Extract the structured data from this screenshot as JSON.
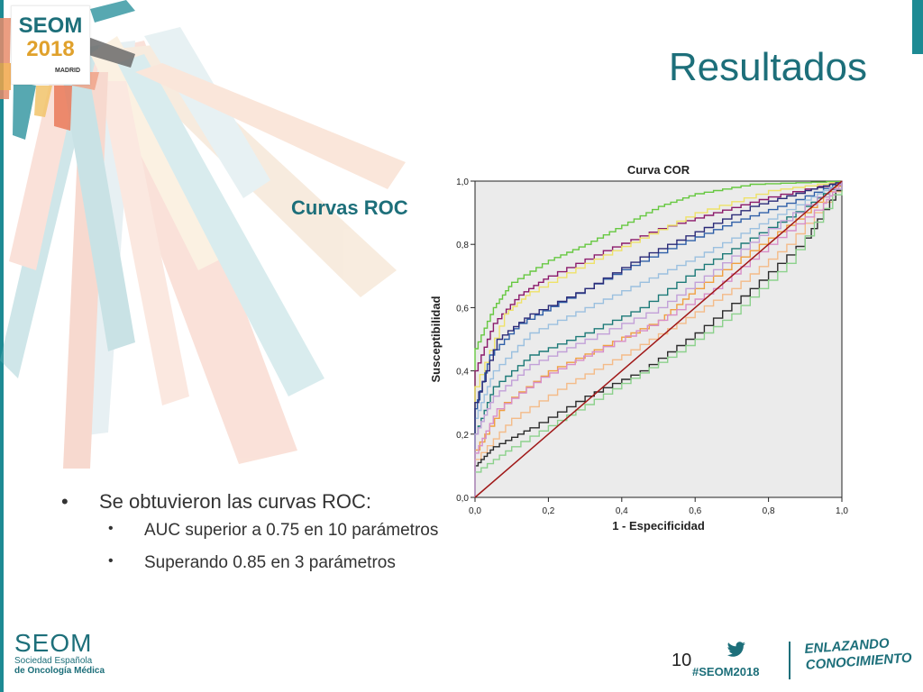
{
  "slide": {
    "title": "Resultados",
    "subtitle": "Curvas ROC",
    "bullet_main": "Se obtuvieron las curvas ROC:",
    "bullet_sub": [
      "AUC superior a 0.75 en 10 parámetros",
      "Superando 0.85 en 3 parámetros"
    ]
  },
  "logo": {
    "name": "SEOM",
    "year": "2018",
    "city": "MADRID"
  },
  "footer": {
    "org": "SEOM",
    "org_line1": "Sociedad Española",
    "org_line2": "de Oncología Médica",
    "page": "10",
    "hashtag": "#SEOM2018",
    "tagline_1": "ENLAZANDO",
    "tagline_2": "CONOCIMIENTO"
  },
  "colors": {
    "accent": "#1d6f7a",
    "gold": "#e0a12c",
    "plot_bg": "#ebebeb",
    "reference_line": "#a01818"
  },
  "chart_data": {
    "type": "line",
    "title": "Curva COR",
    "xlabel": "1 - Especificidad",
    "ylabel": "Susceptibilidad",
    "xlim": [
      0,
      1
    ],
    "ylim": [
      0,
      1
    ],
    "xticks": [
      "0,0",
      "0,2",
      "0,4",
      "0,6",
      "0,8",
      "1,0"
    ],
    "yticks": [
      "0,0",
      "0,2",
      "0,4",
      "0,6",
      "0,8",
      "1,0"
    ],
    "grid": false,
    "reference_line": [
      [
        0,
        0
      ],
      [
        1,
        1
      ]
    ],
    "series": [
      {
        "color": "#66c840",
        "points": [
          [
            0,
            0
          ],
          [
            0,
            0.47
          ],
          [
            0.05,
            0.6
          ],
          [
            0.1,
            0.68
          ],
          [
            0.2,
            0.75
          ],
          [
            0.3,
            0.8
          ],
          [
            0.4,
            0.86
          ],
          [
            0.5,
            0.92
          ],
          [
            0.6,
            0.96
          ],
          [
            0.75,
            0.99
          ],
          [
            1,
            1
          ]
        ]
      },
      {
        "color": "#8b1a6b",
        "points": [
          [
            0,
            0
          ],
          [
            0,
            0.4
          ],
          [
            0.05,
            0.55
          ],
          [
            0.12,
            0.64
          ],
          [
            0.2,
            0.7
          ],
          [
            0.35,
            0.78
          ],
          [
            0.5,
            0.85
          ],
          [
            0.65,
            0.9
          ],
          [
            0.8,
            0.95
          ],
          [
            1,
            1
          ]
        ]
      },
      {
        "color": "#eee268",
        "points": [
          [
            0,
            0
          ],
          [
            0,
            0.35
          ],
          [
            0.08,
            0.58
          ],
          [
            0.15,
            0.65
          ],
          [
            0.3,
            0.74
          ],
          [
            0.45,
            0.82
          ],
          [
            0.6,
            0.9
          ],
          [
            0.8,
            0.97
          ],
          [
            1,
            1
          ]
        ]
      },
      {
        "color": "#2f5fa8",
        "points": [
          [
            0,
            0
          ],
          [
            0,
            0.28
          ],
          [
            0.04,
            0.45
          ],
          [
            0.12,
            0.55
          ],
          [
            0.25,
            0.63
          ],
          [
            0.4,
            0.72
          ],
          [
            0.55,
            0.8
          ],
          [
            0.7,
            0.87
          ],
          [
            0.85,
            0.93
          ],
          [
            1,
            1
          ]
        ]
      },
      {
        "color": "#9bc0df",
        "points": [
          [
            0,
            0
          ],
          [
            0,
            0.25
          ],
          [
            0.05,
            0.4
          ],
          [
            0.15,
            0.52
          ],
          [
            0.3,
            0.6
          ],
          [
            0.45,
            0.68
          ],
          [
            0.6,
            0.76
          ],
          [
            0.75,
            0.85
          ],
          [
            0.9,
            0.94
          ],
          [
            1,
            1
          ]
        ]
      },
      {
        "color": "#2b2b78",
        "points": [
          [
            0,
            0
          ],
          [
            0,
            0.3
          ],
          [
            0.06,
            0.5
          ],
          [
            0.15,
            0.58
          ],
          [
            0.3,
            0.66
          ],
          [
            0.45,
            0.76
          ],
          [
            0.6,
            0.84
          ],
          [
            0.75,
            0.92
          ],
          [
            0.9,
            0.97
          ],
          [
            1,
            1
          ]
        ]
      },
      {
        "color": "#1d7a78",
        "points": [
          [
            0,
            0
          ],
          [
            0,
            0.2
          ],
          [
            0.05,
            0.35
          ],
          [
            0.15,
            0.45
          ],
          [
            0.3,
            0.52
          ],
          [
            0.45,
            0.6
          ],
          [
            0.6,
            0.72
          ],
          [
            0.75,
            0.82
          ],
          [
            0.9,
            0.92
          ],
          [
            1,
            1
          ]
        ]
      },
      {
        "color": "#f0a040",
        "points": [
          [
            0,
            0
          ],
          [
            0,
            0.15
          ],
          [
            0.08,
            0.3
          ],
          [
            0.2,
            0.4
          ],
          [
            0.35,
            0.48
          ],
          [
            0.5,
            0.56
          ],
          [
            0.6,
            0.66
          ],
          [
            0.75,
            0.78
          ],
          [
            0.9,
            0.9
          ],
          [
            1,
            1
          ]
        ]
      },
      {
        "color": "#f4bb88",
        "points": [
          [
            0,
            0
          ],
          [
            0,
            0.12
          ],
          [
            0.1,
            0.25
          ],
          [
            0.25,
            0.36
          ],
          [
            0.4,
            0.45
          ],
          [
            0.55,
            0.55
          ],
          [
            0.7,
            0.66
          ],
          [
            0.85,
            0.8
          ],
          [
            1,
            1
          ]
        ]
      },
      {
        "color": "#2b2b2b",
        "points": [
          [
            0,
            0
          ],
          [
            0,
            0.1
          ],
          [
            0.05,
            0.16
          ],
          [
            0.15,
            0.22
          ],
          [
            0.3,
            0.32
          ],
          [
            0.45,
            0.4
          ],
          [
            0.6,
            0.52
          ],
          [
            0.75,
            0.66
          ],
          [
            0.9,
            0.82
          ],
          [
            1,
            1
          ]
        ]
      },
      {
        "color": "#8cd18c",
        "points": [
          [
            0,
            0
          ],
          [
            0,
            0.08
          ],
          [
            0.1,
            0.16
          ],
          [
            0.25,
            0.26
          ],
          [
            0.4,
            0.36
          ],
          [
            0.55,
            0.46
          ],
          [
            0.7,
            0.58
          ],
          [
            0.85,
            0.74
          ],
          [
            1,
            1
          ]
        ]
      },
      {
        "color": "#d88ec8",
        "points": [
          [
            0,
            0
          ],
          [
            0,
            0.14
          ],
          [
            0.06,
            0.28
          ],
          [
            0.18,
            0.38
          ],
          [
            0.32,
            0.46
          ],
          [
            0.5,
            0.56
          ],
          [
            0.65,
            0.66
          ],
          [
            0.8,
            0.8
          ],
          [
            0.95,
            0.93
          ],
          [
            1,
            1
          ]
        ]
      },
      {
        "color": "#c2a0d8",
        "points": [
          [
            0,
            0
          ],
          [
            0,
            0.2
          ],
          [
            0.05,
            0.32
          ],
          [
            0.15,
            0.42
          ],
          [
            0.3,
            0.5
          ],
          [
            0.5,
            0.6
          ],
          [
            0.65,
            0.72
          ],
          [
            0.8,
            0.85
          ],
          [
            1,
            1
          ]
        ]
      }
    ]
  }
}
